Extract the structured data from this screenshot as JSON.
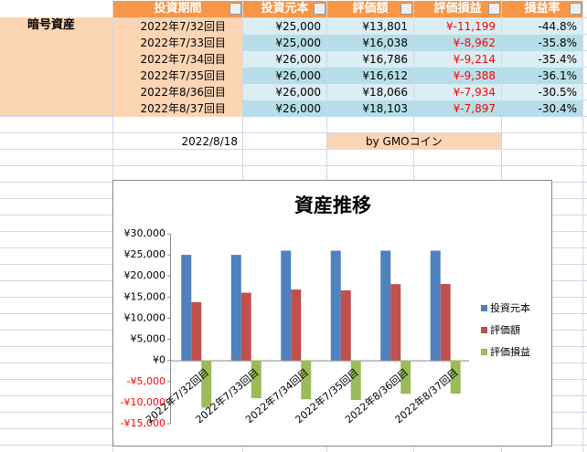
{
  "table": {
    "row_label": "暗号資産",
    "header": [
      "投資期間",
      "投資元本",
      "評価額",
      "評価損益",
      "損益率"
    ],
    "rows": [
      [
        "2022年7/32回目",
        "¥25,000",
        "¥13,801",
        "¥-11,199",
        "-44.8%"
      ],
      [
        "2022年7/33回目",
        "¥25,000",
        "¥16,038",
        "¥-8,962",
        "-35.8%"
      ],
      [
        "2022年7/34回目",
        "¥26,000",
        "¥16,786",
        "¥-9,214",
        "-35.4%"
      ],
      [
        "2022年7/35回目",
        "¥26,000",
        "¥16,612",
        "¥-9,388",
        "-36.1%"
      ],
      [
        "2022年8/36回目",
        "¥26,000",
        "¥18,066",
        "¥-7,934",
        "-30.5%"
      ],
      [
        "2022年8/37回目",
        "¥26,000",
        "¥18,103",
        "¥-7,897",
        "-30.4%"
      ]
    ],
    "date": "2022/8/18",
    "source": "by  GMOコイン"
  },
  "chart_data": {
    "type": "bar",
    "title": "資産推移",
    "categories": [
      "2022年7/32回目",
      "2022年7/33回目",
      "2022年7/34回目",
      "2022年7/35回目",
      "2022年8/36回目",
      "2022年8/37回目"
    ],
    "series": [
      {
        "name": "投資元本",
        "color": "#4f81bd",
        "values": [
          25000,
          25000,
          26000,
          26000,
          26000,
          26000
        ]
      },
      {
        "name": "評価額",
        "color": "#c0504d",
        "values": [
          13801,
          16038,
          16786,
          16612,
          18066,
          18103
        ]
      },
      {
        "name": "評価損益",
        "color": "#9bbb59",
        "values": [
          -11199,
          -8962,
          -9214,
          -9388,
          -7934,
          -7897
        ]
      }
    ],
    "ylim": [
      -15000,
      30000
    ],
    "yticks": [
      {
        "value": -15000,
        "label": "-¥15,000"
      },
      {
        "value": -10000,
        "label": "-¥10,000"
      },
      {
        "value": -5000,
        "label": "-¥5,000"
      },
      {
        "value": 0,
        "label": "¥0"
      },
      {
        "value": 5000,
        "label": "¥5,000"
      },
      {
        "value": 10000,
        "label": "¥10,000"
      },
      {
        "value": 15000,
        "label": "¥15,000"
      },
      {
        "value": 20000,
        "label": "¥20,000"
      },
      {
        "value": 25000,
        "label": "¥25,000"
      },
      {
        "value": 30000,
        "label": "¥30,000"
      }
    ],
    "negative_tick_color": "#ff0000",
    "grid": false,
    "legend": "right"
  }
}
